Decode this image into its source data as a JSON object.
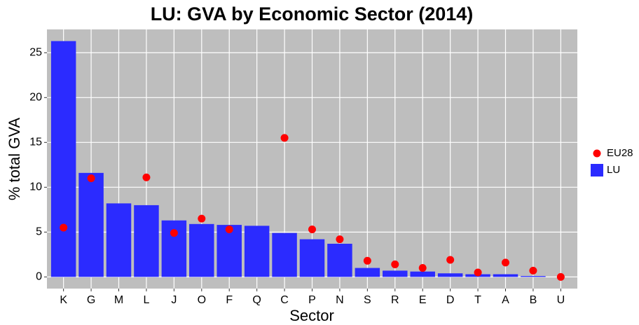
{
  "chart_data": {
    "type": "bar",
    "title": "LU: GVA by Economic Sector (2014)",
    "x_label": "Sector",
    "y_label": "% total GVA",
    "categories": [
      "K",
      "G",
      "M",
      "L",
      "J",
      "O",
      "F",
      "Q",
      "C",
      "P",
      "N",
      "S",
      "R",
      "E",
      "D",
      "T",
      "A",
      "B",
      "U"
    ],
    "series": [
      {
        "name": "EU28",
        "type": "scatter",
        "color": "#ff0000",
        "values": [
          5.5,
          11.0,
          null,
          11.1,
          4.9,
          6.5,
          5.3,
          null,
          15.5,
          5.3,
          4.2,
          1.8,
          1.4,
          1.0,
          1.9,
          0.5,
          1.6,
          0.7,
          0.0
        ]
      },
      {
        "name": "LU",
        "type": "bar",
        "color": "#2b2bff",
        "values": [
          26.3,
          11.6,
          8.2,
          8.0,
          6.3,
          5.9,
          5.8,
          5.7,
          4.9,
          4.2,
          3.7,
          1.0,
          0.7,
          0.6,
          0.4,
          0.3,
          0.3,
          0.1,
          0.0
        ]
      }
    ],
    "ylim": [
      -1.3,
      27.6
    ],
    "yticks": [
      0,
      5,
      10,
      15,
      20,
      25
    ],
    "grid": true,
    "legend": "right"
  }
}
